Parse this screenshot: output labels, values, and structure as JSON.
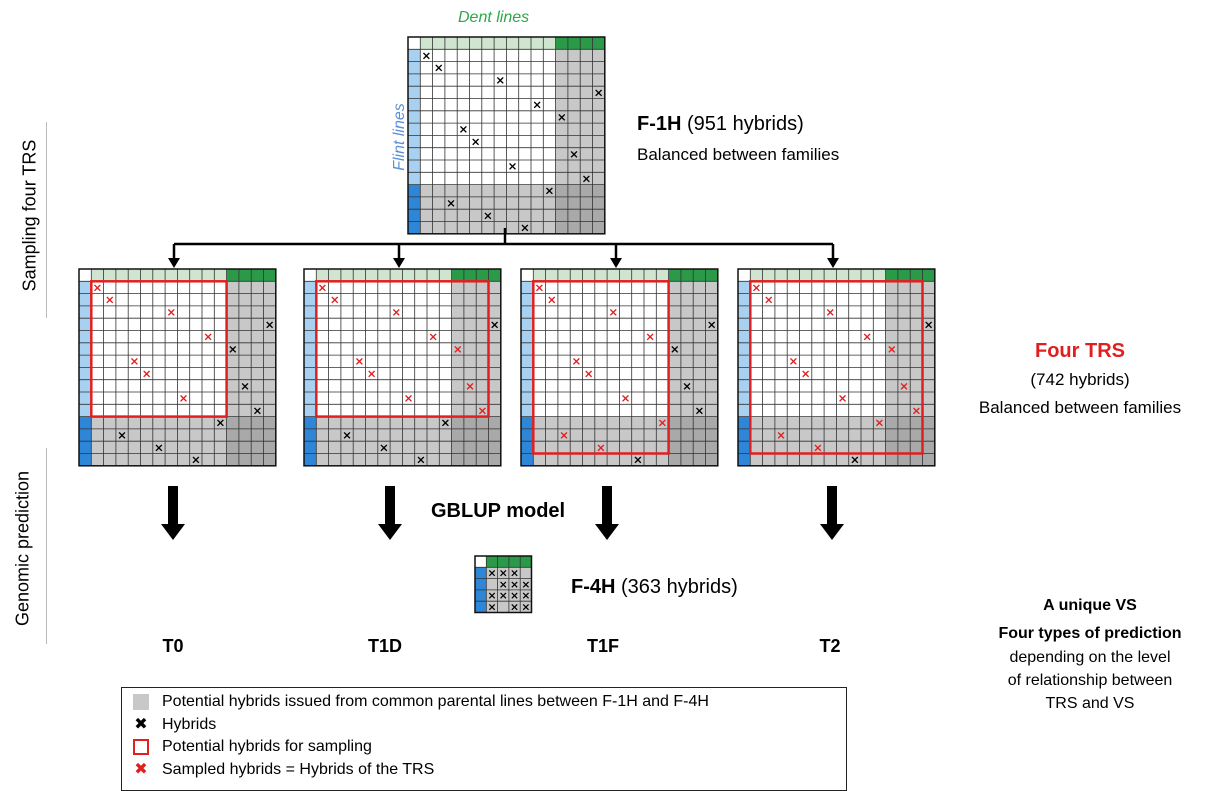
{
  "side_labels": {
    "sampling": "Sampling four TRS",
    "prediction": "Genomic prediction"
  },
  "top_matrix": {
    "dent_label": "Dent lines",
    "flint_label": "Flint lines",
    "title_bold": "F-1H",
    "title_rest": " (951 hybrids)",
    "subtitle": "Balanced between families"
  },
  "four_trs": {
    "title": "Four TRS",
    "count": "(742 hybrids)",
    "subtitle": "Balanced between families"
  },
  "model_label": "GBLUP model",
  "vs_matrix": {
    "title_bold": "F-4H",
    "title_rest": " (363 hybrids)"
  },
  "scenarios": [
    "T0",
    "T1D",
    "T1F",
    "T2"
  ],
  "right_panel": {
    "unique_vs": "A unique VS",
    "types_title": "Four types of prediction",
    "types_desc": [
      "depending on the level",
      "of relationship between",
      "TRS and VS"
    ]
  },
  "legend": {
    "items": [
      "Potential hybrids issued from common parental lines between F-1H and F-4H",
      "Hybrids",
      "Potential hybrids for sampling",
      "Sampled hybrids = Hybrids of the TRS"
    ]
  },
  "colors": {
    "dent_green": "#2a9a48",
    "dent_light": "#cfe5cf",
    "flint_blue": "#2e86d9",
    "flint_light": "#a8d0f0",
    "common_gray": "#c8c8c8",
    "common_dark": "#a9a9a9",
    "sample_red": "#e02020",
    "dent_text": "#2ca84a",
    "flint_text": "#5b8fd8",
    "trs_red": "#e02020"
  }
}
